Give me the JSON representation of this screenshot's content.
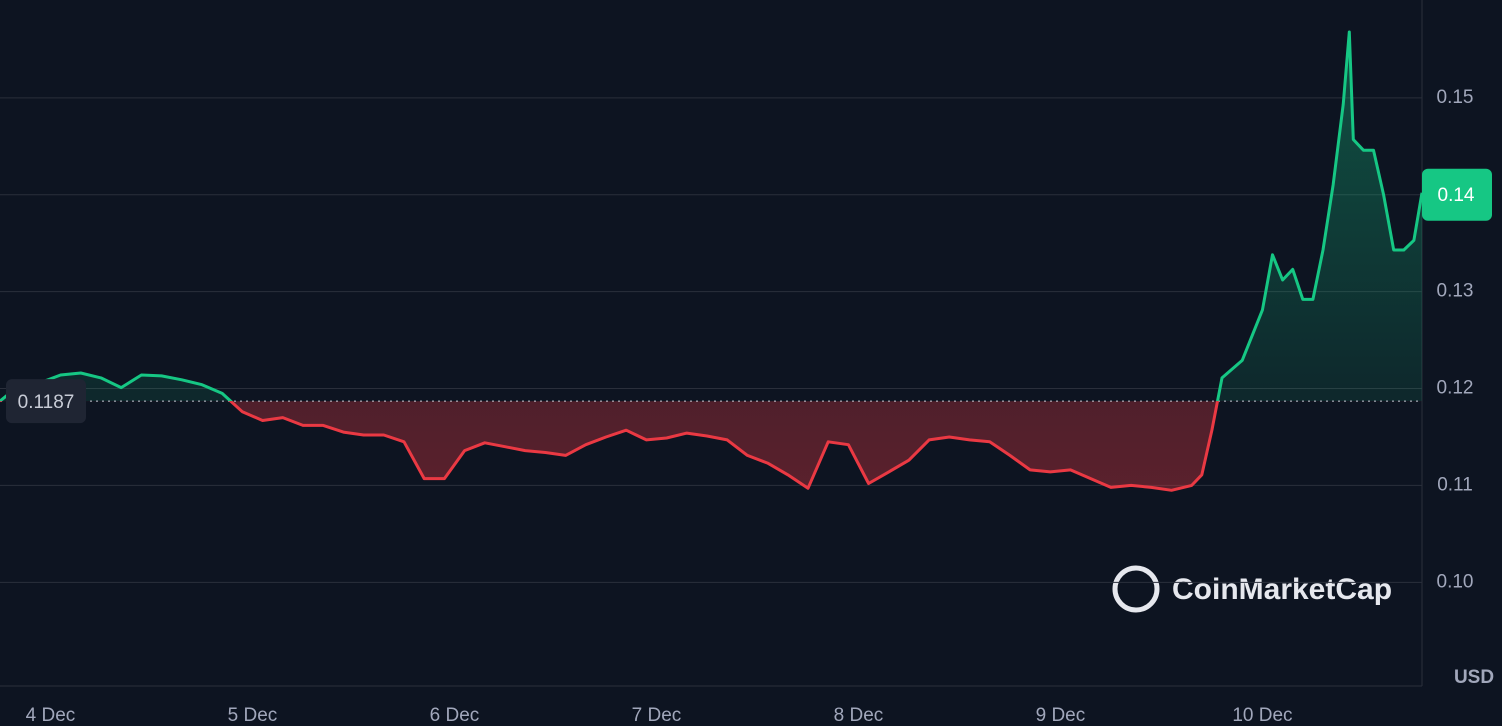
{
  "chart_data": {
    "type": "line",
    "x": [
      3.75,
      3.85,
      3.95,
      4.05,
      4.15,
      4.25,
      4.35,
      4.45,
      4.55,
      4.65,
      4.75,
      4.85,
      4.95,
      5.05,
      5.15,
      5.25,
      5.35,
      5.45,
      5.55,
      5.65,
      5.75,
      5.85,
      5.95,
      6.05,
      6.15,
      6.25,
      6.35,
      6.45,
      6.55,
      6.65,
      6.75,
      6.85,
      6.95,
      7.05,
      7.15,
      7.25,
      7.35,
      7.45,
      7.55,
      7.65,
      7.75,
      7.85,
      7.95,
      8.05,
      8.15,
      8.25,
      8.35,
      8.45,
      8.55,
      8.65,
      8.75,
      8.85,
      8.95,
      9.05,
      9.15,
      9.25,
      9.35,
      9.45,
      9.55,
      9.65,
      9.7,
      9.75,
      9.8,
      9.9,
      10.0,
      10.05,
      10.1,
      10.15,
      10.2,
      10.25,
      10.3,
      10.35,
      10.4,
      10.43,
      10.45,
      10.5,
      10.55,
      10.6,
      10.65,
      10.7,
      10.75,
      10.79
    ],
    "values": [
      0.1187,
      0.1204,
      0.1206,
      0.1214,
      0.1216,
      0.1211,
      0.1201,
      0.1214,
      0.1213,
      0.1209,
      0.1204,
      0.1195,
      0.1176,
      0.1167,
      0.117,
      0.1162,
      0.1162,
      0.1155,
      0.1152,
      0.1152,
      0.1145,
      0.1107,
      0.1107,
      0.1136,
      0.1144,
      0.114,
      0.1136,
      0.1134,
      0.1131,
      0.1142,
      0.115,
      0.1157,
      0.1147,
      0.1149,
      0.1154,
      0.1151,
      0.1147,
      0.1131,
      0.1123,
      0.1111,
      0.1097,
      0.1145,
      0.1142,
      0.1102,
      0.1114,
      0.1126,
      0.1147,
      0.115,
      0.1147,
      0.1145,
      0.1131,
      0.1116,
      0.1114,
      0.1116,
      0.1107,
      0.1098,
      0.11,
      0.1098,
      0.1095,
      0.11,
      0.1111,
      0.1157,
      0.1211,
      0.1229,
      0.1281,
      0.1338,
      0.1312,
      0.1323,
      0.1292,
      0.1292,
      0.1343,
      0.141,
      0.1493,
      0.1568,
      0.1457,
      0.1446,
      0.1446,
      0.14,
      0.1343,
      0.1343,
      0.1353,
      0.1402
    ],
    "baseline": 0.1187,
    "price_tag": 0.14,
    "up_color": "#16c784",
    "down_color": "#ea3943",
    "xlim": [
      3.75,
      10.79
    ],
    "xticks": [
      {
        "value": 4,
        "label": "4 Dec"
      },
      {
        "value": 5,
        "label": "5 Dec"
      },
      {
        "value": 6,
        "label": "6 Dec"
      },
      {
        "value": 7,
        "label": "7 Dec"
      },
      {
        "value": 8,
        "label": "8 Dec"
      },
      {
        "value": 9,
        "label": "9 Dec"
      },
      {
        "value": 10,
        "label": "10 Dec"
      }
    ],
    "ylim": [
      0.0893,
      0.1601
    ],
    "yticks": [
      {
        "value": 0.1,
        "label": "0.10"
      },
      0.11,
      0.12,
      0.13,
      0.14,
      0.15
    ],
    "y_label": "USD",
    "watermark": "CoinMarketCap",
    "grid": true
  }
}
